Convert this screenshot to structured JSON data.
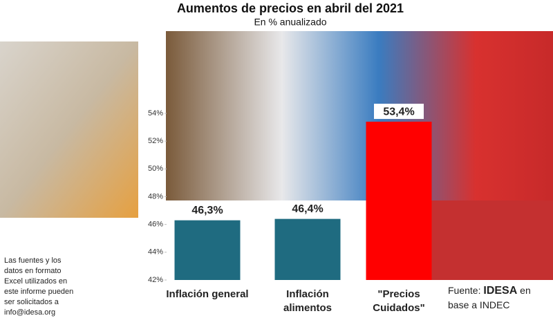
{
  "chart_data": {
    "type": "bar",
    "title": "Aumentos de precios en abril del 2021",
    "subtitle": "En % anualizado",
    "categories": [
      "Inflación general",
      "Inflación\nalimentos",
      "\"Precios\nCuidados\""
    ],
    "values": [
      46.3,
      46.4,
      53.4
    ],
    "value_labels": [
      "46,3%",
      "46,4%",
      "53,4%"
    ],
    "colors": [
      "#1f6b80",
      "#1f6b80",
      "#ff0000"
    ],
    "ylim": [
      42,
      54
    ],
    "yticks": [
      {
        "value": 42,
        "label": "42%"
      },
      {
        "value": 44,
        "label": "44%"
      },
      {
        "value": 46,
        "label": "46%"
      },
      {
        "value": 48,
        "label": "48%"
      },
      {
        "value": 50,
        "label": "50%"
      },
      {
        "value": 52,
        "label": "52%"
      },
      {
        "value": 54,
        "label": "54%"
      }
    ],
    "source": {
      "prefix": "Fuente:",
      "org": "IDESA",
      "suffix": "en base a INDEC"
    }
  },
  "side_note": "Las fuentes y los datos en formato Excel utilizados en este informe pueden ser solicitados a info@idesa.org"
}
